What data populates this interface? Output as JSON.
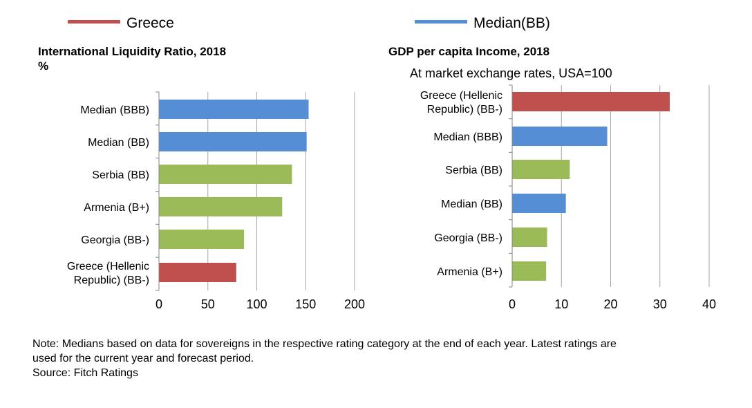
{
  "legend": [
    {
      "label": "Greece",
      "color": "#c0504d"
    },
    {
      "label": "Median(BB)",
      "color": "#558ed5"
    }
  ],
  "colors": {
    "greece": "#c0504d",
    "median": "#558ed5",
    "peer": "#9bbb59",
    "grid": "#a6a6a6"
  },
  "chart_data": [
    {
      "type": "bar",
      "orientation": "horizontal",
      "title": "International Liquidity Ratio, 2018",
      "subtitle": "%",
      "categories": [
        "Median (BBB)",
        "Median (BB)",
        "Serbia (BB)",
        "Armenia (B+)",
        "Georgia (BB-)",
        "Greece (Hellenic Republic) (BB-)"
      ],
      "category_label_lines": [
        [
          "Median (BBB)"
        ],
        [
          "Median (BB)"
        ],
        [
          "Serbia (BB)"
        ],
        [
          "Armenia (B+)"
        ],
        [
          "Georgia (BB-)"
        ],
        [
          "Greece (Hellenic",
          "Republic) (BB-)"
        ]
      ],
      "values": [
        153,
        151,
        136,
        126,
        87,
        79
      ],
      "bar_colors": [
        "median",
        "median",
        "peer",
        "peer",
        "peer",
        "greece"
      ],
      "xlim": [
        0,
        200
      ],
      "xticks": [
        0,
        50,
        100,
        150,
        200
      ],
      "grid": true
    },
    {
      "type": "bar",
      "orientation": "horizontal",
      "title": "GDP per capita Income, 2018",
      "subtitle": "At market exchange rates, USA=100",
      "categories": [
        "Greece (Hellenic Republic) (BB-)",
        "Median (BBB)",
        "Serbia (BB)",
        "Median (BB)",
        "Georgia (BB-)",
        "Armenia (B+)"
      ],
      "category_label_lines": [
        [
          "Greece (Hellenic",
          "Republic) (BB-)"
        ],
        [
          "Median (BBB)"
        ],
        [
          "Serbia (BB)"
        ],
        [
          "Median (BB)"
        ],
        [
          "Georgia (BB-)"
        ],
        [
          "Armenia (B+)"
        ]
      ],
      "values": [
        32,
        19.3,
        11.7,
        10.9,
        7.1,
        6.9
      ],
      "bar_colors": [
        "greece",
        "median",
        "peer",
        "median",
        "peer",
        "peer"
      ],
      "xlim": [
        0,
        40
      ],
      "xticks": [
        0,
        10,
        20,
        30,
        40
      ],
      "grid": true
    }
  ],
  "note": {
    "line1": "Note: Medians based on data for sovereigns in the respective rating category at the end of each year. Latest ratings are",
    "line2": "used for the current year and forecast period.",
    "source": "Source: Fitch Ratings"
  }
}
